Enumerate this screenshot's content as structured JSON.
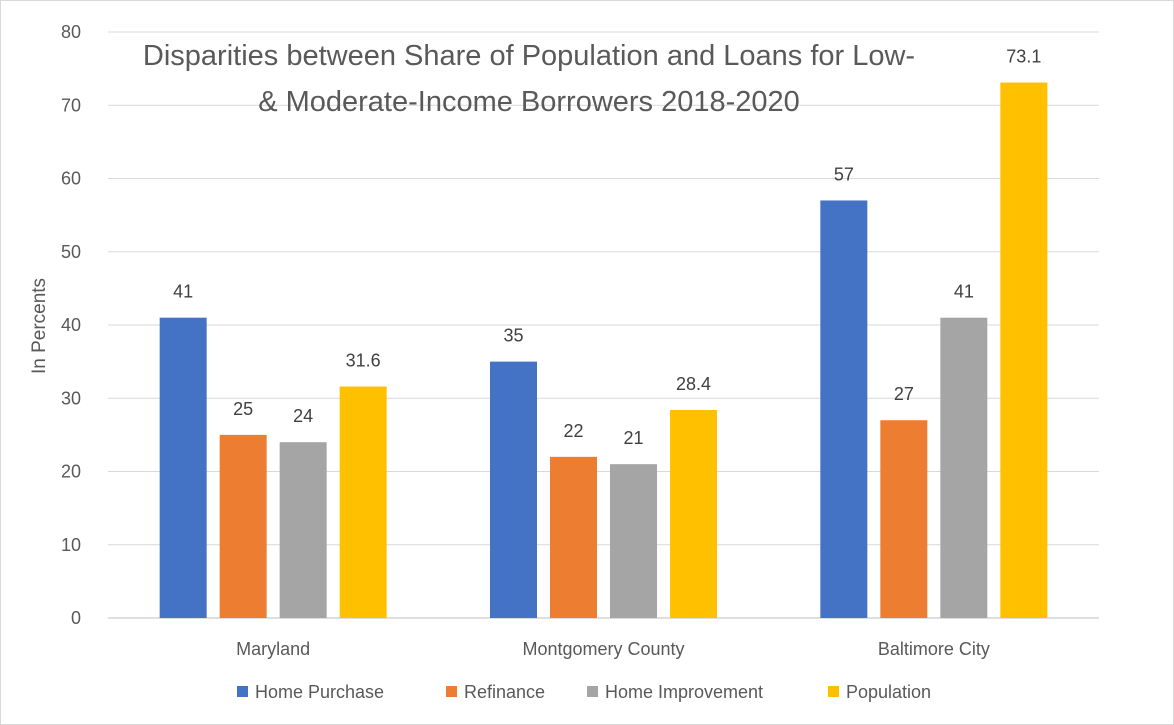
{
  "chart_data": {
    "type": "bar",
    "title_lines": [
      "Disparities between Share of Population and Loans for Low-",
      "& Moderate-Income Borrowers 2018-2020"
    ],
    "ylabel": "In Percents",
    "xlabel": "",
    "ylim": [
      0,
      80
    ],
    "yticks": [
      "0",
      "10",
      "20",
      "30",
      "40",
      "50",
      "60",
      "70",
      "80"
    ],
    "grid": true,
    "legend_position": "bottom",
    "categories": [
      "Maryland",
      "Montgomery County",
      "Baltimore City"
    ],
    "series": [
      {
        "name": "Home Purchase",
        "color": "#4472C4",
        "values": [
          41,
          35,
          57
        ],
        "labels": [
          "41",
          "35",
          "57"
        ]
      },
      {
        "name": "Refinance",
        "color": "#ED7D31",
        "values": [
          25,
          22,
          27
        ],
        "labels": [
          "25",
          "22",
          "27"
        ]
      },
      {
        "name": "Home Improvement",
        "color": "#A5A5A5",
        "values": [
          24,
          21,
          41
        ],
        "labels": [
          "24",
          "21",
          "41"
        ]
      },
      {
        "name": "Population",
        "color": "#FFC000",
        "values": [
          31.6,
          28.4,
          73.1
        ],
        "labels": [
          "31.6",
          "28.4",
          "73.1"
        ]
      }
    ]
  }
}
